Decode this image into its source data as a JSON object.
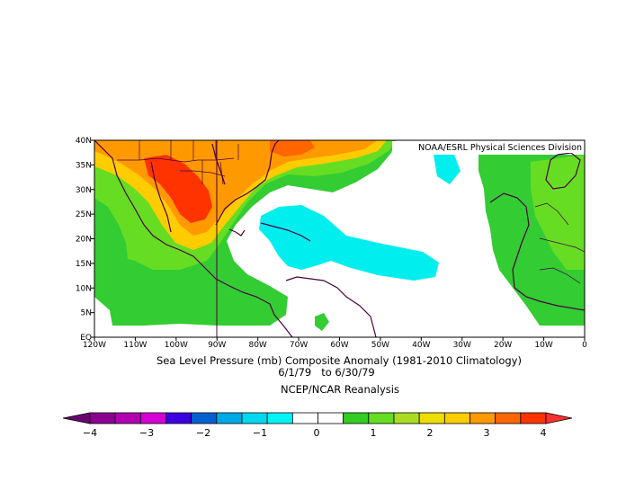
{
  "map": {
    "credit": "NOAA/ESRL Physical Sciences Division",
    "title_line1": "Sea Level Pressure (mb) Composite Anomaly (1981-2010 Climatology)",
    "title_line2": "6/1/79   to 6/30/79",
    "title_line3": "NCEP/NCAR Reanalysis",
    "lon_extent": [
      -120,
      0
    ],
    "lat_extent": [
      0,
      40
    ],
    "lon_labels": [
      "120W",
      "110W",
      "100W",
      "90W",
      "80W",
      "70W",
      "60W",
      "50W",
      "40W",
      "30W",
      "20W",
      "10W",
      "0"
    ],
    "lat_labels": [
      "EQ",
      "5N",
      "10N",
      "15N",
      "20N",
      "25N",
      "30N",
      "35N",
      "40N"
    ],
    "anomaly_regions": [
      {
        "level": "+1",
        "color": "#33cc33"
      },
      {
        "level": "+2",
        "color": "#66dd22"
      },
      {
        "level": "+2.5",
        "color": "#ffcc00"
      },
      {
        "level": "+3",
        "color": "#ff9900"
      },
      {
        "level": "+3.5",
        "color": "#ff3300"
      },
      {
        "level": "-1",
        "color": "#00eeee"
      }
    ]
  },
  "colorbar": {
    "colors": [
      "#6a0070",
      "#8a008f",
      "#b000b0",
      "#d400d4",
      "#3d00e0",
      "#0060d0",
      "#00a8e6",
      "#00d8f0",
      "#00f4f4",
      "#ffffff",
      "#ffffff",
      "#33cc22",
      "#66dd22",
      "#aadd22",
      "#eedd00",
      "#ffcc00",
      "#ff9900",
      "#ff6600",
      "#ff3300",
      "#ff3030"
    ],
    "labels": [
      "-4",
      "-3",
      "-2",
      "-1",
      "0",
      "1",
      "2",
      "3",
      "4"
    ]
  }
}
